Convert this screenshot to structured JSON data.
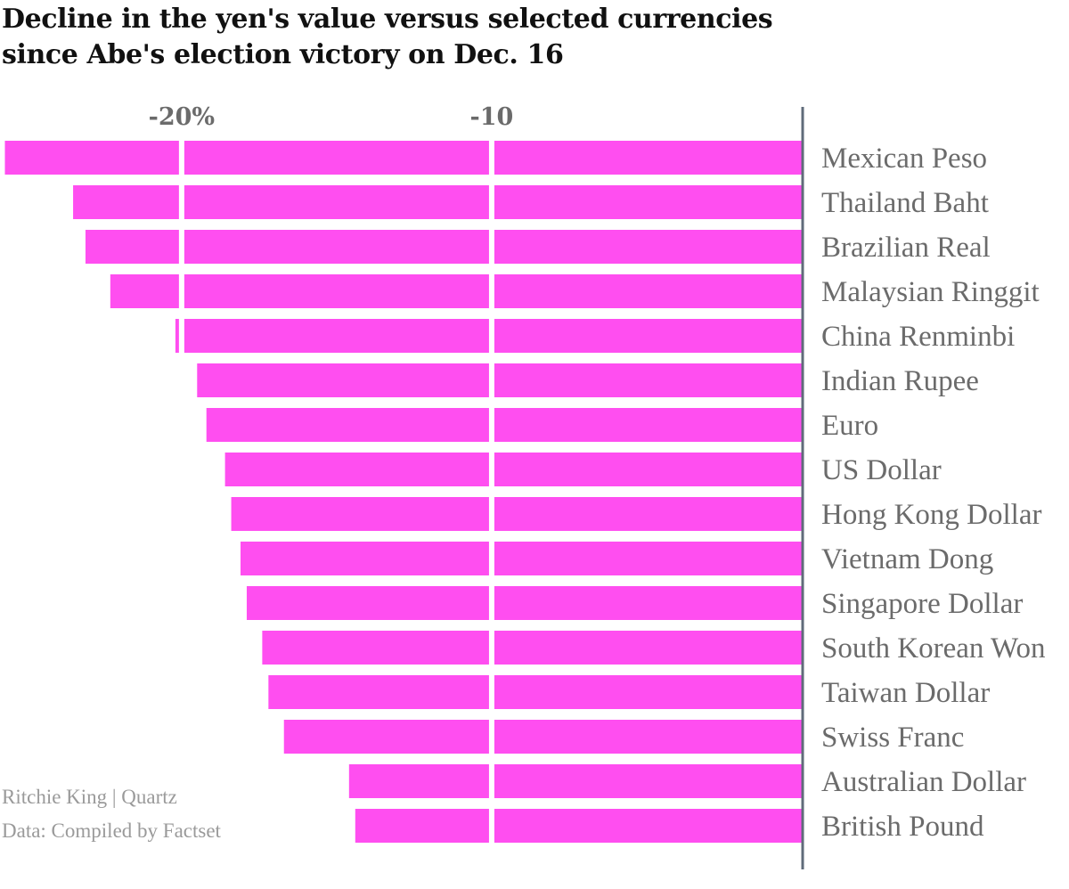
{
  "chart_data": {
    "type": "bar",
    "orientation": "horizontal",
    "title": "Decline in the yen's value versus selected currencies since Abe's election victory on Dec. 16",
    "title_lines": [
      "Decline in the yen's value versus selected currencies",
      "since Abe's election victory on Dec. 16"
    ],
    "xlabel": "",
    "ylabel": "",
    "xlim": [
      -25.8,
      0
    ],
    "xticks": [
      {
        "value": -20,
        "label": "-20%"
      },
      {
        "value": -10,
        "label": "-10"
      }
    ],
    "grid": true,
    "legend": "none",
    "categories": [
      "Mexican Peso",
      "Thailand Baht",
      "Brazilian Real",
      "Malaysian Ringgit",
      "China Renminbi",
      "Indian Rupee",
      "Euro",
      "US Dollar",
      "Hong Kong Dollar",
      "Vietnam Dong",
      "Singapore Dollar",
      "South Korean Won",
      "Taiwan Dollar",
      "Swiss Franc",
      "Australian Dollar",
      "British Pound"
    ],
    "values": [
      -25.7,
      -23.5,
      -23.1,
      -22.3,
      -20.2,
      -19.5,
      -19.2,
      -18.6,
      -18.4,
      -18.1,
      -17.9,
      -17.4,
      -17.2,
      -16.7,
      -14.6,
      -14.4
    ],
    "bar_color": "#ff4ef0",
    "axis_color": "#5f6b7a",
    "credits": {
      "author": "Ritchie King | Quartz",
      "source": "Data: Compiled by Factset"
    }
  }
}
